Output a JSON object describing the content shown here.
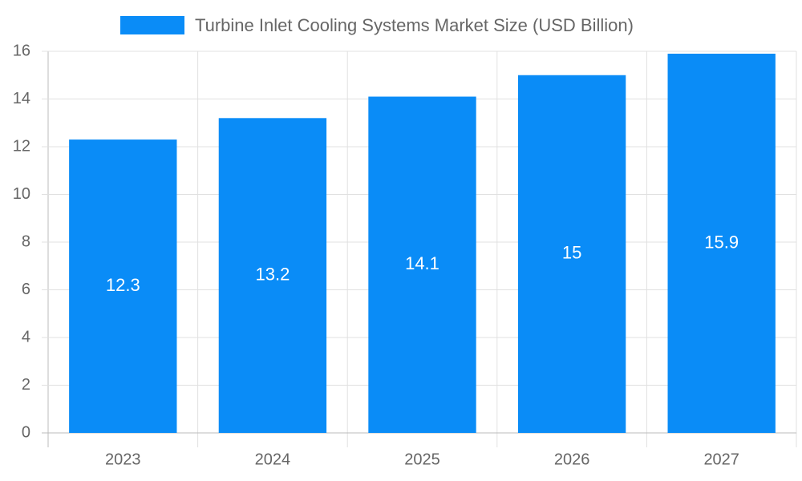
{
  "chart_data": {
    "type": "bar",
    "categories": [
      "2023",
      "2024",
      "2025",
      "2026",
      "2027"
    ],
    "series": [
      {
        "name": "Turbine Inlet Cooling Systems Market Size (USD Billion)",
        "color": "#0a8cf7",
        "values": [
          12.3,
          13.2,
          14.1,
          15,
          15.9
        ]
      }
    ],
    "ylim": [
      0,
      16
    ],
    "yticks": [
      0,
      2,
      4,
      6,
      8,
      10,
      12,
      14,
      16
    ],
    "grid": true,
    "legend": "top"
  }
}
